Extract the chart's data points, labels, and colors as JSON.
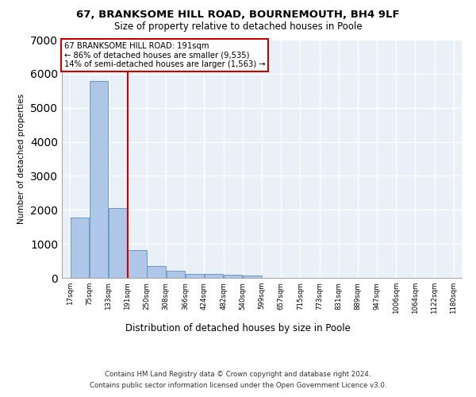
{
  "title1": "67, BRANKSOME HILL ROAD, BOURNEMOUTH, BH4 9LF",
  "title2": "Size of property relative to detached houses in Poole",
  "xlabel": "Distribution of detached houses by size in Poole",
  "ylabel": "Number of detached properties",
  "footer1": "Contains HM Land Registry data © Crown copyright and database right 2024.",
  "footer2": "Contains public sector information licensed under the Open Government Licence v3.0.",
  "annotation_line1": "67 BRANKSOME HILL ROAD: 191sqm",
  "annotation_line2": "← 86% of detached houses are smaller (9,535)",
  "annotation_line3": "14% of semi-detached houses are larger (1,563) →",
  "bar_edges": [
    17,
    75,
    133,
    191,
    250,
    308,
    366,
    424,
    482,
    540,
    599,
    657,
    715,
    773,
    831,
    889,
    947,
    1006,
    1064,
    1122,
    1180
  ],
  "bar_heights": [
    1780,
    5780,
    2060,
    820,
    340,
    200,
    115,
    110,
    100,
    80,
    0,
    0,
    0,
    0,
    0,
    0,
    0,
    0,
    0,
    0
  ],
  "bar_color": "#aec6e8",
  "bar_edgecolor": "#5a8fc0",
  "vline_color": "#cc0000",
  "vline_x": 191,
  "ylim": [
    0,
    7000
  ],
  "yticks": [
    0,
    1000,
    2000,
    3000,
    4000,
    5000,
    6000,
    7000
  ],
  "bg_color": "#eaf0f8",
  "grid_color": "#ffffff",
  "annotation_box_edgecolor": "#cc0000",
  "annotation_box_facecolor": "#ffffff"
}
